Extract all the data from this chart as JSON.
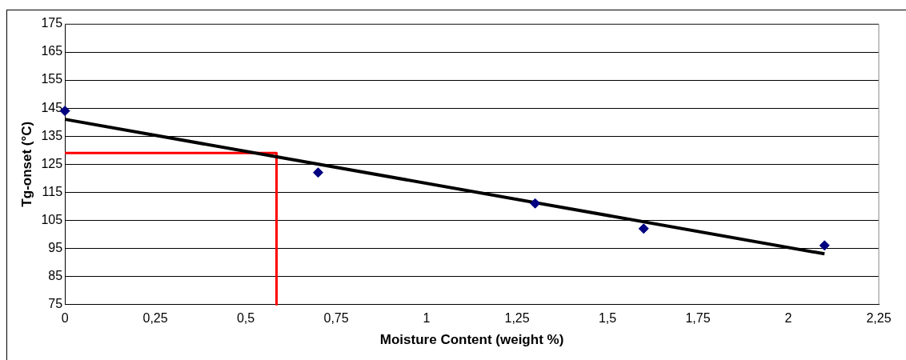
{
  "chart_data": {
    "type": "scatter",
    "xlabel": "Moisture Content (weight %)",
    "ylabel": "Tg-onset (°C)",
    "x": [
      0,
      0.7,
      1.3,
      1.6,
      2.1
    ],
    "series": [
      {
        "color": "#000080",
        "marker": "diamond",
        "values": [
          144,
          122,
          111,
          102,
          96
        ]
      },
      {
        "type": "line",
        "color": "#000000",
        "marker": "none",
        "x": [
          0,
          2.1
        ],
        "values": [
          141,
          93
        ]
      },
      {
        "type": "line",
        "color": "#ff0000",
        "marker": "none",
        "x": [
          0,
          0.585,
          0.585
        ],
        "values": [
          129,
          129,
          75
        ]
      }
    ],
    "xlim": [
      0,
      2.25
    ],
    "xticks": [
      0,
      {
        "value": 0.25,
        "label": "0,25"
      },
      {
        "value": 0.5,
        "label": "0,5"
      },
      {
        "value": 0.75,
        "label": "0,75"
      },
      1,
      {
        "value": 1.25,
        "label": "1,25"
      },
      {
        "value": 1.5,
        "label": "1,5"
      },
      {
        "value": 1.75,
        "label": "1,75"
      },
      2,
      {
        "value": 2.25,
        "label": "2,25"
      }
    ],
    "ylim": [
      75,
      175
    ],
    "yticks": [
      75,
      85,
      95,
      105,
      115,
      125,
      135,
      145,
      155,
      165,
      175
    ],
    "grid": "y",
    "legend": false
  }
}
